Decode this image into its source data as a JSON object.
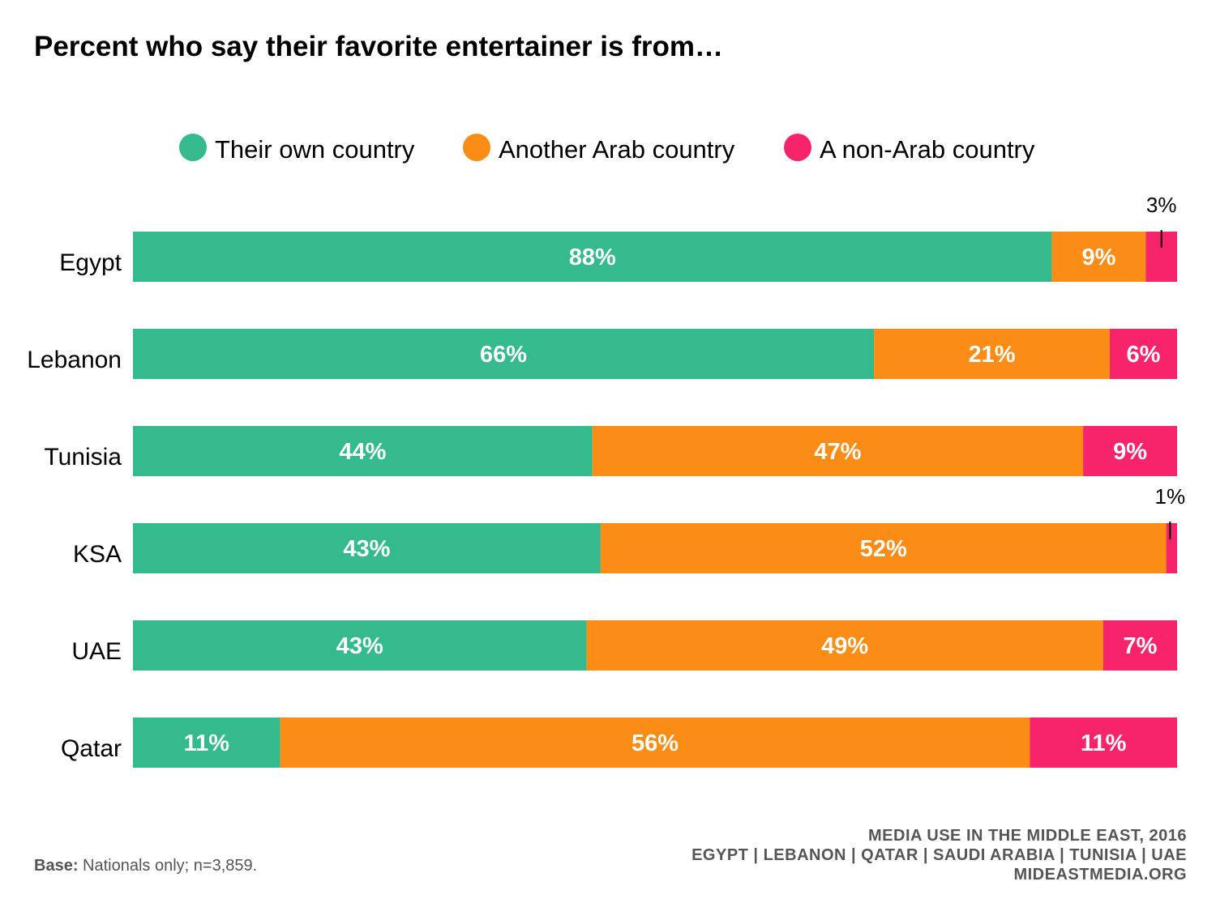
{
  "title": "Percent who say their favorite entertainer is from…",
  "chart_data": {
    "type": "bar",
    "orientation": "horizontal",
    "stacked": true,
    "categories": [
      "Egypt",
      "Lebanon",
      "Tunisia",
      "KSA",
      "UAE",
      "Qatar"
    ],
    "series": [
      {
        "name": "Their own country",
        "color": "#34BA8C",
        "values": [
          88,
          66,
          44,
          43,
          43,
          11
        ]
      },
      {
        "name": "Another Arab country",
        "color": "#FB8C15",
        "values": [
          9,
          21,
          47,
          52,
          49,
          56
        ]
      },
      {
        "name": "A non-Arab country",
        "color": "#F7236B",
        "values": [
          3,
          6,
          9,
          1,
          7,
          11
        ]
      }
    ],
    "value_suffix": "%",
    "legend_position": "top",
    "grid": false
  },
  "footer": {
    "base_label": "Base:",
    "base_text": " Nationals only; n=3,859.",
    "source_lines": [
      "MEDIA USE IN THE MIDDLE EAST, 2016",
      "EGYPT | LEBANON | QATAR | SAUDI ARABIA | TUNISIA | UAE",
      "MIDEASTMEDIA.ORG"
    ]
  }
}
